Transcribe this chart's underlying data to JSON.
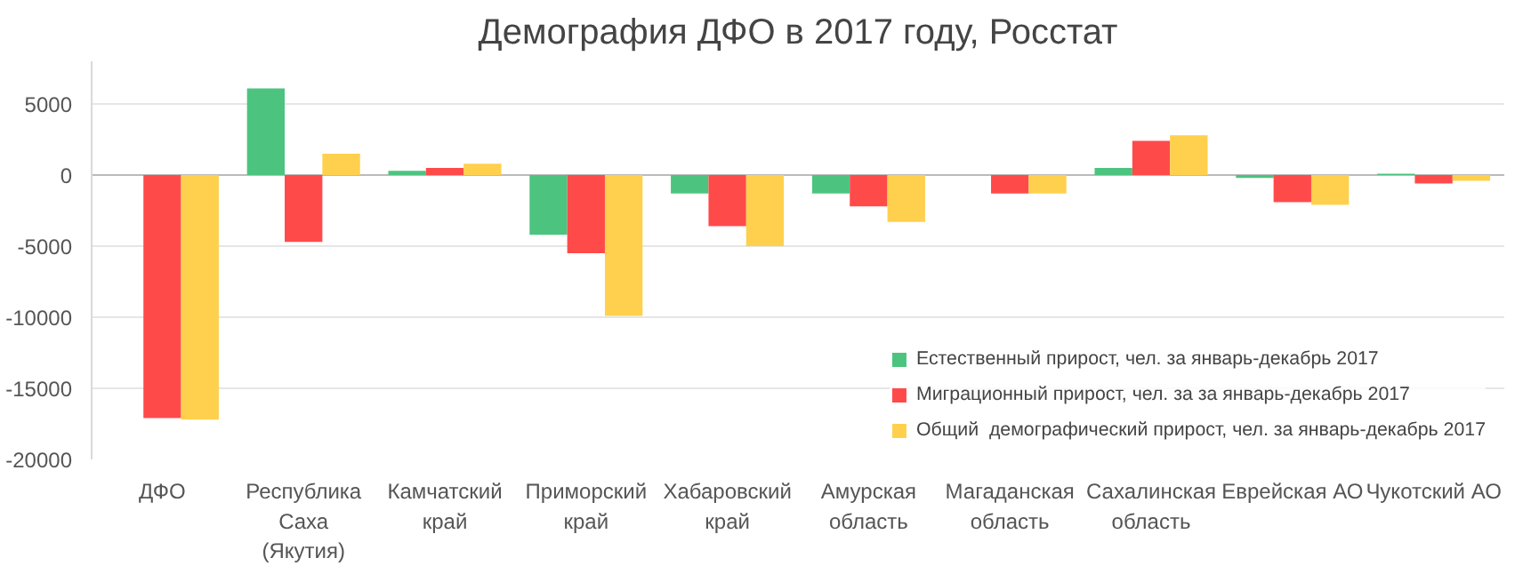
{
  "chart_data": {
    "type": "bar",
    "title": "Демография ДФО в 2017 году, Росстат",
    "categories": [
      "ДФО",
      "Республика Саха (Якутия)",
      "Камчатский край",
      "Приморский край",
      "Хабаровский край",
      "Амурская область",
      "Магаданская область",
      "Сахалинская область",
      "Еврейская АО",
      "Чукотский АО"
    ],
    "series": [
      {
        "name": "Естественный прирост, чел. за январь-декабрь 2017",
        "color": "#4cc47f",
        "values": [
          0,
          6100,
          300,
          -4200,
          -1300,
          -1300,
          0,
          500,
          -200,
          100
        ]
      },
      {
        "name": "Миграционный прирост, чел. за за январь-декабрь 2017",
        "color": "#ff4a4a",
        "values": [
          -17100,
          -4700,
          500,
          -5500,
          -3600,
          -2200,
          -1300,
          2400,
          -1900,
          -600
        ]
      },
      {
        "name": "Общий  демографический прирост, чел. за январь-декабрь 2017",
        "color": "#ffd04d",
        "values": [
          -17200,
          1500,
          800,
          -9900,
          -5000,
          -3300,
          -1300,
          2800,
          -2100,
          -400
        ]
      }
    ],
    "ylim": [
      -20000,
      8000
    ],
    "yticks": [
      -20000,
      -15000,
      -10000,
      -5000,
      0,
      5000
    ],
    "grid": "y",
    "legend": "bottom right"
  }
}
